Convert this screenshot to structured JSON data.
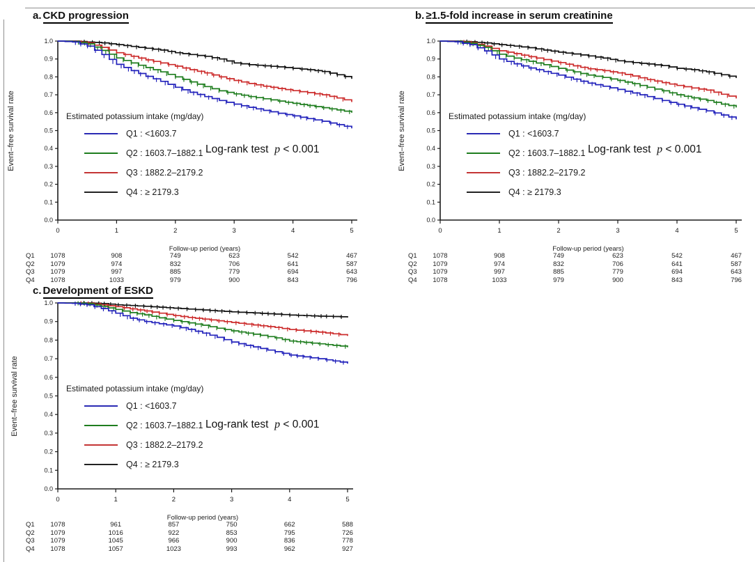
{
  "axes": {
    "x_label": "Follow-up period (years)",
    "y_label": "Event–free survival rate",
    "x_ticks": [
      "0",
      "1",
      "2",
      "3",
      "4",
      "5"
    ],
    "y_ticks": [
      "1.0",
      "0.9",
      "0.8",
      "0.7",
      "0.6",
      "0.5",
      "0.4",
      "0.3",
      "0.2",
      "0.1",
      "0.0"
    ]
  },
  "legend": {
    "title": "Estimated potassium intake (mg/day)",
    "entries": [
      {
        "label": "Q1 : <1603.7",
        "color": "#2a2ab4"
      },
      {
        "label": "Q2 : 1603.7–1882.1",
        "color": "#1e7d1e"
      },
      {
        "label": "Q3 : 1882.2–2179.2",
        "color": "#c43434"
      },
      {
        "label": "Q4 : ≥ 2179.3",
        "color": "#222222"
      }
    ]
  },
  "logrank": {
    "prefix": "Log-rank test",
    "p_symbol": "p",
    "value": "< 0.001"
  },
  "panels": [
    {
      "prefix": "a.",
      "title": "CKD progression"
    },
    {
      "prefix": "b.",
      "title": "≥1.5-fold increase in serum creatinine"
    },
    {
      "prefix": "c.",
      "title": "Development of ESKD"
    }
  ],
  "chart_data": [
    {
      "type": "line",
      "title": "a. CKD progression",
      "xlabel": "Follow-up period (years)",
      "ylabel": "Event–free survival rate",
      "ylim": [
        0.0,
        1.0
      ],
      "xlim": [
        0,
        5
      ],
      "legend_position": "inside-left",
      "p_value": "Log-rank test p < 0.001",
      "x": [
        0,
        0.25,
        0.5,
        0.75,
        1,
        1.25,
        1.5,
        1.75,
        2,
        2.25,
        2.5,
        2.75,
        3,
        3.25,
        3.5,
        3.75,
        4,
        4.25,
        4.5,
        4.75,
        5
      ],
      "series": [
        {
          "name": "Q1 : <1603.7",
          "color": "#2222bb",
          "values": [
            1,
            0.995,
            0.972,
            0.925,
            0.87,
            0.835,
            0.803,
            0.775,
            0.742,
            0.714,
            0.69,
            0.668,
            0.648,
            0.63,
            0.613,
            0.597,
            0.582,
            0.567,
            0.552,
            0.533,
            0.515
          ]
        },
        {
          "name": "Q2 : 1603.7–1882.1",
          "color": "#1e7d1e",
          "values": [
            1,
            0.997,
            0.985,
            0.948,
            0.906,
            0.878,
            0.852,
            0.828,
            0.8,
            0.772,
            0.746,
            0.722,
            0.705,
            0.69,
            0.678,
            0.665,
            0.652,
            0.64,
            0.628,
            0.615,
            0.602
          ]
        },
        {
          "name": "Q3 : 1882.2–2179.2",
          "color": "#cc2b2b",
          "values": [
            1,
            0.998,
            0.99,
            0.965,
            0.935,
            0.915,
            0.895,
            0.878,
            0.86,
            0.84,
            0.822,
            0.8,
            0.78,
            0.763,
            0.748,
            0.735,
            0.723,
            0.712,
            0.7,
            0.682,
            0.662
          ]
        },
        {
          "name": "Q4 : ≥ 2179.3",
          "color": "#111111",
          "values": [
            1,
            1,
            0.995,
            0.99,
            0.98,
            0.97,
            0.96,
            0.95,
            0.935,
            0.925,
            0.915,
            0.9,
            0.878,
            0.868,
            0.862,
            0.856,
            0.848,
            0.84,
            0.83,
            0.812,
            0.792
          ]
        }
      ],
      "risk_table": {
        "time_points": [
          0,
          1,
          2,
          3,
          4,
          5
        ],
        "rows": [
          {
            "label": "Q1",
            "values": [
              1078,
              908,
              749,
              623,
              542,
              467
            ]
          },
          {
            "label": "Q2",
            "values": [
              1079,
              974,
              832,
              706,
              641,
              587
            ]
          },
          {
            "label": "Q3",
            "values": [
              1079,
              997,
              885,
              779,
              694,
              643
            ]
          },
          {
            "label": "Q4",
            "values": [
              1078,
              1033,
              979,
              900,
              843,
              796
            ]
          }
        ]
      }
    },
    {
      "type": "line",
      "title": "b. ≥1.5-fold increase in serum creatinine",
      "xlabel": "Follow-up period (years)",
      "ylabel": "Event–free survival rate",
      "ylim": [
        0.0,
        1.0
      ],
      "xlim": [
        0,
        5
      ],
      "legend_position": "inside-left",
      "p_value": "Log-rank test p < 0.001",
      "x": [
        0,
        0.25,
        0.5,
        0.75,
        1,
        1.25,
        1.5,
        1.75,
        2,
        2.25,
        2.5,
        2.75,
        3,
        3.25,
        3.5,
        3.75,
        4,
        4.25,
        4.5,
        4.75,
        5
      ],
      "series": [
        {
          "name": "Q1 : <1603.7",
          "color": "#2222bb",
          "values": [
            1,
            0.996,
            0.98,
            0.945,
            0.9,
            0.873,
            0.85,
            0.83,
            0.81,
            0.787,
            0.765,
            0.748,
            0.73,
            0.71,
            0.69,
            0.668,
            0.647,
            0.628,
            0.61,
            0.587,
            0.565
          ]
        },
        {
          "name": "Q2 : 1603.7–1882.1",
          "color": "#1e7d1e",
          "values": [
            1,
            0.998,
            0.988,
            0.965,
            0.927,
            0.905,
            0.887,
            0.868,
            0.848,
            0.828,
            0.81,
            0.797,
            0.78,
            0.762,
            0.742,
            0.722,
            0.7,
            0.683,
            0.668,
            0.648,
            0.632
          ]
        },
        {
          "name": "Q3 : 1882.2–2179.2",
          "color": "#cc2b2b",
          "values": [
            1,
            0.999,
            0.992,
            0.972,
            0.946,
            0.93,
            0.913,
            0.897,
            0.88,
            0.862,
            0.845,
            0.835,
            0.822,
            0.805,
            0.785,
            0.768,
            0.752,
            0.738,
            0.726,
            0.703,
            0.682
          ]
        },
        {
          "name": "Q4 : ≥ 2179.3",
          "color": "#111111",
          "values": [
            1,
            1,
            0.996,
            0.99,
            0.98,
            0.972,
            0.963,
            0.95,
            0.938,
            0.928,
            0.917,
            0.905,
            0.89,
            0.88,
            0.872,
            0.863,
            0.848,
            0.84,
            0.828,
            0.812,
            0.796
          ]
        }
      ],
      "risk_table": {
        "time_points": [
          0,
          1,
          2,
          3,
          4,
          5
        ],
        "rows": [
          {
            "label": "Q1",
            "values": [
              1078,
              908,
              749,
              623,
              542,
              467
            ]
          },
          {
            "label": "Q2",
            "values": [
              1079,
              974,
              832,
              706,
              641,
              587
            ]
          },
          {
            "label": "Q3",
            "values": [
              1079,
              997,
              885,
              779,
              694,
              643
            ]
          },
          {
            "label": "Q4",
            "values": [
              1078,
              1033,
              979,
              900,
              843,
              796
            ]
          }
        ]
      }
    },
    {
      "type": "line",
      "title": "c. Development of ESKD",
      "xlabel": "Follow-up period (years)",
      "ylabel": "Event–free survival rate",
      "ylim": [
        0.0,
        1.0
      ],
      "xlim": [
        0,
        5
      ],
      "legend_position": "inside-left",
      "p_value": "Log-rank test p < 0.001",
      "x": [
        0,
        0.25,
        0.5,
        0.75,
        1,
        1.25,
        1.5,
        1.75,
        2,
        2.25,
        2.5,
        2.75,
        3,
        3.25,
        3.5,
        3.75,
        4,
        4.25,
        4.5,
        4.75,
        5
      ],
      "series": [
        {
          "name": "Q1 : <1603.7",
          "color": "#2222bb",
          "values": [
            1,
            0.998,
            0.99,
            0.97,
            0.945,
            0.918,
            0.9,
            0.888,
            0.876,
            0.858,
            0.838,
            0.815,
            0.79,
            0.772,
            0.755,
            0.738,
            0.72,
            0.71,
            0.7,
            0.688,
            0.676
          ]
        },
        {
          "name": "Q2 : 1603.7–1882.1",
          "color": "#1e7d1e",
          "values": [
            1,
            1,
            0.996,
            0.982,
            0.965,
            0.948,
            0.936,
            0.92,
            0.906,
            0.893,
            0.88,
            0.864,
            0.85,
            0.838,
            0.826,
            0.812,
            0.795,
            0.788,
            0.78,
            0.772,
            0.764
          ]
        },
        {
          "name": "Q3 : 1882.2–2179.2",
          "color": "#cc2b2b",
          "values": [
            1,
            1,
            0.998,
            0.99,
            0.98,
            0.968,
            0.957,
            0.945,
            0.932,
            0.922,
            0.913,
            0.904,
            0.895,
            0.886,
            0.877,
            0.868,
            0.857,
            0.85,
            0.843,
            0.834,
            0.825
          ]
        },
        {
          "name": "Q4 : ≥ 2179.3",
          "color": "#111111",
          "values": [
            1,
            1,
            1,
            0.997,
            0.99,
            0.986,
            0.982,
            0.977,
            0.972,
            0.967,
            0.962,
            0.957,
            0.952,
            0.948,
            0.944,
            0.94,
            0.935,
            0.932,
            0.929,
            0.927,
            0.924
          ]
        }
      ],
      "risk_table": {
        "time_points": [
          0,
          1,
          2,
          3,
          4,
          5
        ],
        "rows": [
          {
            "label": "Q1",
            "values": [
              1078,
              961,
              857,
              750,
              662,
              588
            ]
          },
          {
            "label": "Q2",
            "values": [
              1079,
              1016,
              922,
              853,
              795,
              726
            ]
          },
          {
            "label": "Q3",
            "values": [
              1079,
              1045,
              966,
              900,
              836,
              778
            ]
          },
          {
            "label": "Q4",
            "values": [
              1078,
              1057,
              1023,
              993,
              962,
              927
            ]
          }
        ]
      }
    }
  ]
}
